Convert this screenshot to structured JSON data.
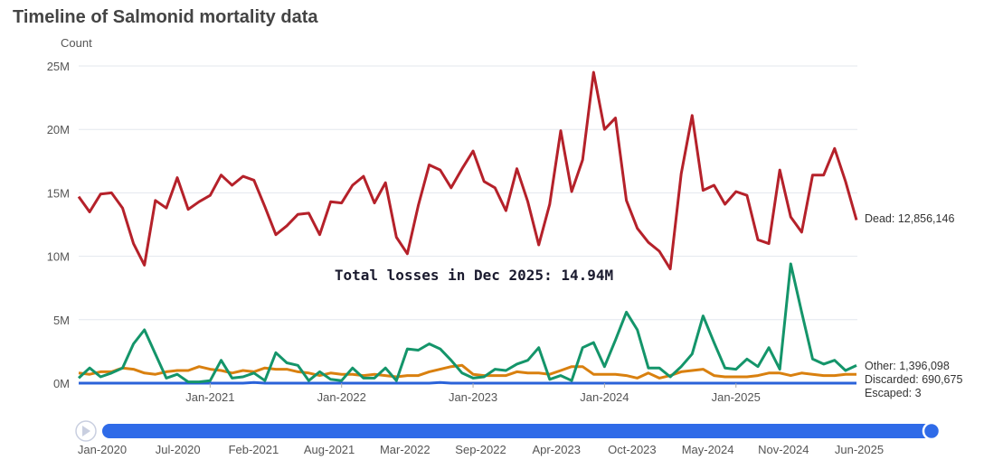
{
  "chart_data": {
    "type": "line",
    "title": "Timeline of Salmonid mortality data",
    "ylabel": "Count",
    "xlabel": "",
    "ylim": [
      0,
      25000000
    ],
    "value_unit": "millions",
    "yticks": [
      "0M",
      "5M",
      "10M",
      "15M",
      "20M",
      "25M"
    ],
    "xticks": [
      {
        "index": 12,
        "label": "Jan-2021"
      },
      {
        "index": 24,
        "label": "Jan-2022"
      },
      {
        "index": 36,
        "label": "Jan-2023"
      },
      {
        "index": 48,
        "label": "Jan-2024"
      },
      {
        "index": 60,
        "label": "Jan-2025"
      }
    ],
    "x_start": "Jan-2020",
    "x_end": "Dec-2025",
    "grid": true,
    "annotation": "Total losses in Dec 2025: 14.94M",
    "series": [
      {
        "name": "Dead",
        "color": "#b5212a",
        "end_label": "Dead: 12,856,146",
        "values": [
          14.7,
          13.5,
          14.9,
          15.0,
          13.8,
          11.0,
          9.3,
          14.4,
          13.8,
          16.2,
          13.7,
          14.3,
          14.8,
          16.4,
          15.6,
          16.3,
          16.0,
          13.9,
          11.7,
          12.4,
          13.3,
          13.4,
          11.7,
          14.3,
          14.2,
          15.6,
          16.3,
          14.2,
          15.8,
          11.5,
          10.2,
          14.0,
          17.2,
          16.8,
          15.4,
          16.9,
          18.3,
          15.9,
          15.4,
          13.6,
          16.9,
          14.3,
          10.9,
          14.1,
          19.9,
          15.1,
          17.6,
          24.5,
          20.0,
          20.9,
          14.4,
          12.2,
          11.1,
          10.4,
          9.0,
          16.5,
          21.1,
          15.2,
          15.6,
          14.1,
          15.1,
          14.8,
          11.3,
          11.0,
          16.8,
          13.1,
          11.9,
          16.4,
          16.4,
          18.5,
          15.9,
          12.856146
        ]
      },
      {
        "name": "Other",
        "color": "#14956a",
        "end_label": "Other: 1,396,098",
        "values": [
          0.4,
          1.2,
          0.5,
          0.8,
          1.2,
          3.1,
          4.2,
          2.3,
          0.4,
          0.7,
          0.1,
          0.1,
          0.2,
          1.8,
          0.4,
          0.5,
          0.8,
          0.2,
          2.4,
          1.6,
          1.4,
          0.2,
          0.9,
          0.3,
          0.2,
          1.2,
          0.4,
          0.4,
          1.2,
          0.2,
          2.7,
          2.6,
          3.1,
          2.7,
          1.8,
          0.8,
          0.4,
          0.5,
          1.1,
          1.0,
          1.5,
          1.8,
          2.8,
          0.3,
          0.6,
          0.2,
          2.8,
          3.2,
          1.3,
          3.4,
          5.6,
          4.2,
          1.2,
          1.2,
          0.5,
          1.3,
          2.3,
          5.3,
          3.2,
          1.2,
          1.1,
          1.9,
          1.3,
          2.8,
          1.1,
          9.4,
          5.6,
          1.9,
          1.5,
          1.8,
          1.0,
          1.396098
        ]
      },
      {
        "name": "Discarded",
        "color": "#d9800f",
        "end_label": "Discarded: 690,675",
        "values": [
          0.8,
          0.7,
          0.9,
          0.9,
          1.2,
          1.1,
          0.8,
          0.7,
          0.9,
          1.0,
          1.0,
          1.3,
          1.1,
          1.0,
          0.8,
          1.0,
          0.9,
          1.2,
          1.1,
          1.1,
          0.9,
          0.8,
          0.6,
          0.8,
          0.7,
          0.7,
          0.6,
          0.7,
          0.6,
          0.5,
          0.6,
          0.6,
          0.9,
          1.1,
          1.3,
          1.4,
          0.7,
          0.6,
          0.6,
          0.6,
          0.9,
          0.8,
          0.8,
          0.7,
          1.0,
          1.3,
          1.3,
          0.7,
          0.7,
          0.7,
          0.6,
          0.4,
          0.8,
          0.4,
          0.6,
          0.9,
          1.0,
          1.1,
          0.6,
          0.5,
          0.5,
          0.5,
          0.6,
          0.8,
          0.8,
          0.6,
          0.8,
          0.7,
          0.6,
          0.6,
          0.7,
          0.690675
        ]
      },
      {
        "name": "Escaped",
        "color": "#2b63d9",
        "end_label": "Escaped: 3",
        "values": [
          0,
          0,
          0,
          0,
          0,
          0,
          0,
          0,
          0,
          0,
          0,
          0,
          0,
          0,
          0,
          0,
          0.05,
          0,
          0,
          0,
          0,
          0,
          0,
          0,
          0,
          0,
          0,
          0,
          0,
          0,
          0,
          0,
          0,
          0.05,
          0,
          0,
          0,
          0,
          0,
          0,
          0,
          0,
          0,
          0,
          0,
          0,
          0,
          0,
          0,
          0,
          0,
          0,
          0,
          0,
          0,
          0,
          0,
          0,
          0,
          0,
          0,
          0,
          0,
          0,
          0,
          0,
          0,
          0,
          0,
          0,
          0,
          3e-06
        ]
      }
    ]
  },
  "slider": {
    "labels": [
      "Jan-2020",
      "Jul-2020",
      "Feb-2021",
      "Aug-2021",
      "Mar-2022",
      "Sep-2022",
      "Apr-2023",
      "Oct-2023",
      "May-2024",
      "Nov-2024",
      "Jun-2025"
    ],
    "progress": 1.0,
    "color": "#2f6be8"
  }
}
